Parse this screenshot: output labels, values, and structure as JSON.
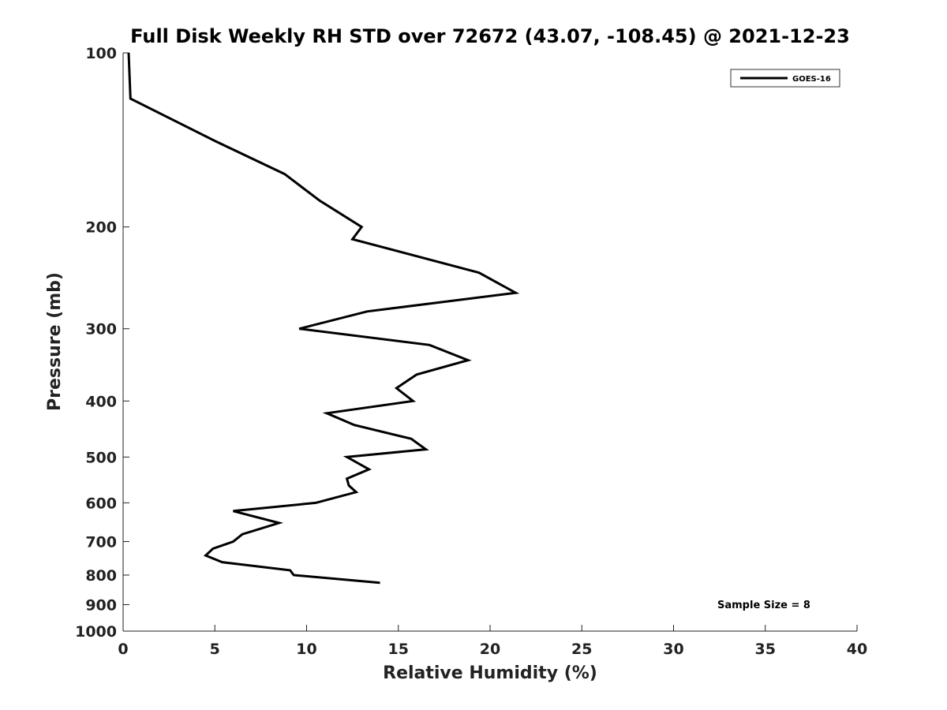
{
  "chart_data": {
    "type": "line",
    "title": "Full Disk Weekly RH STD over 72672 (43.07, -108.45) @ 2021-12-23",
    "xlabel": "Relative Humidity (%)",
    "ylabel": "Pressure (mb)",
    "xlim": [
      0,
      40
    ],
    "ylim": [
      1000,
      100
    ],
    "yscale": "log",
    "x_ticks": [
      0,
      5,
      10,
      15,
      20,
      25,
      30,
      35,
      40
    ],
    "y_ticks": [
      100,
      200,
      300,
      400,
      500,
      600,
      700,
      800,
      900,
      1000
    ],
    "grid": false,
    "legend_position": "top-right",
    "annotation": "Sample Size = 8",
    "series": [
      {
        "name": "GOES-16",
        "color": "#000000",
        "points": [
          {
            "rh": 0.3,
            "p": 100
          },
          {
            "rh": 0.4,
            "p": 120
          },
          {
            "rh": 5.0,
            "p": 142
          },
          {
            "rh": 8.8,
            "p": 162
          },
          {
            "rh": 10.7,
            "p": 180
          },
          {
            "rh": 13.0,
            "p": 200
          },
          {
            "rh": 12.5,
            "p": 210
          },
          {
            "rh": 19.4,
            "p": 240
          },
          {
            "rh": 21.4,
            "p": 260
          },
          {
            "rh": 13.3,
            "p": 280
          },
          {
            "rh": 9.6,
            "p": 300
          },
          {
            "rh": 16.7,
            "p": 320
          },
          {
            "rh": 18.8,
            "p": 340
          },
          {
            "rh": 16.0,
            "p": 360
          },
          {
            "rh": 14.9,
            "p": 380
          },
          {
            "rh": 15.8,
            "p": 400
          },
          {
            "rh": 11.1,
            "p": 420
          },
          {
            "rh": 12.6,
            "p": 440
          },
          {
            "rh": 15.7,
            "p": 465
          },
          {
            "rh": 16.5,
            "p": 485
          },
          {
            "rh": 12.2,
            "p": 500
          },
          {
            "rh": 13.4,
            "p": 525
          },
          {
            "rh": 12.2,
            "p": 545
          },
          {
            "rh": 12.3,
            "p": 560
          },
          {
            "rh": 12.7,
            "p": 575
          },
          {
            "rh": 10.5,
            "p": 600
          },
          {
            "rh": 6.0,
            "p": 620
          },
          {
            "rh": 8.5,
            "p": 650
          },
          {
            "rh": 6.5,
            "p": 680
          },
          {
            "rh": 6.0,
            "p": 700
          },
          {
            "rh": 4.9,
            "p": 720
          },
          {
            "rh": 4.5,
            "p": 740
          },
          {
            "rh": 5.4,
            "p": 760
          },
          {
            "rh": 9.1,
            "p": 785
          },
          {
            "rh": 9.3,
            "p": 800
          },
          {
            "rh": 14.0,
            "p": 825
          }
        ]
      }
    ]
  }
}
